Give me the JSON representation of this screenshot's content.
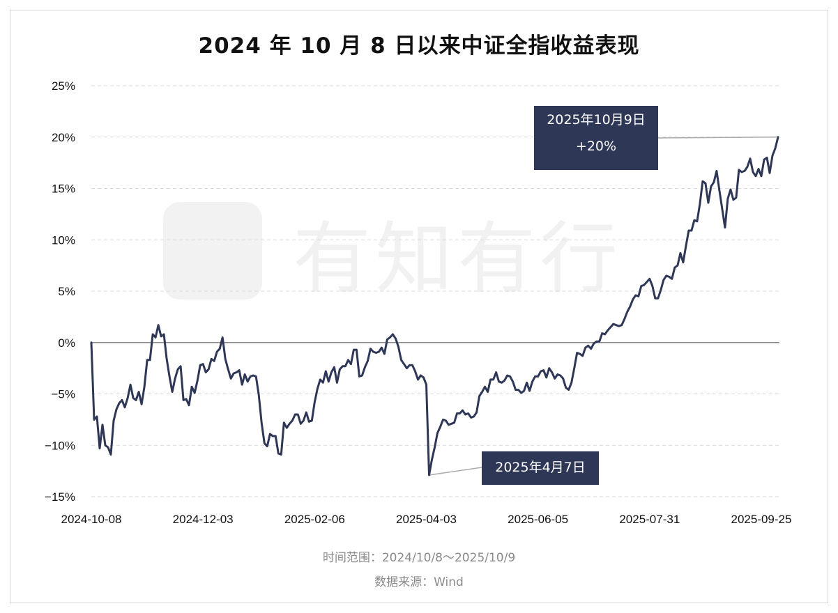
{
  "title": "2024 年 10 月 8 日以来中证全指收益表现",
  "watermark": "有知有行",
  "footer": {
    "time_range": "时间范围：2024/10/8～2025/10/9",
    "source": "数据来源：Wind"
  },
  "annotations": {
    "peak_date": "2025年10月9日",
    "peak_value": "+20%",
    "trough_date": "2025年4月7日"
  },
  "colors": {
    "line": "#2f3757",
    "callout_bg": "#2f3757",
    "grid": "#d9d9d9",
    "zero_line": "#8a8a8a"
  },
  "chart_data": {
    "type": "line",
    "title": "2024 年 10 月 8 日以来中证全指收益表现",
    "xlabel": "",
    "ylabel": "",
    "ylim": [
      -15,
      25
    ],
    "yticks": [
      -15,
      -10,
      -5,
      0,
      5,
      10,
      15,
      20,
      25
    ],
    "ytick_labels": [
      "−15%",
      "−10%",
      "−5%",
      "0%",
      "5%",
      "10%",
      "15%",
      "20%",
      "25%"
    ],
    "xlim": [
      "2024-10-08",
      "2025-10-09"
    ],
    "xtick_labels": [
      "2024-10-08",
      "2024-12-03",
      "2025-02-06",
      "2025-04-03",
      "2025-06-05",
      "2025-07-31",
      "2025-09-25"
    ],
    "grid": true,
    "series": [
      {
        "points": [
          [
            "2024-10-08",
            0.0
          ],
          [
            "2024-10-09",
            -7.5
          ],
          [
            "2024-10-10",
            -7.2
          ],
          [
            "2024-10-11",
            -10.3
          ],
          [
            "2024-10-14",
            -8.0
          ],
          [
            "2024-10-15",
            -10.0
          ],
          [
            "2024-10-16",
            -10.2
          ],
          [
            "2024-10-17",
            -10.9
          ],
          [
            "2024-10-18",
            -7.6
          ],
          [
            "2024-10-21",
            -6.5
          ],
          [
            "2024-10-22",
            -5.9
          ],
          [
            "2024-10-23",
            -5.6
          ],
          [
            "2024-10-24",
            -6.3
          ],
          [
            "2024-10-25",
            -5.4
          ],
          [
            "2024-10-28",
            -4.1
          ],
          [
            "2024-10-29",
            -5.4
          ],
          [
            "2024-10-30",
            -5.6
          ],
          [
            "2024-10-31",
            -4.8
          ],
          [
            "2024-11-01",
            -6.0
          ],
          [
            "2024-11-04",
            -4.3
          ],
          [
            "2024-11-05",
            -1.7
          ],
          [
            "2024-11-06",
            -1.7
          ],
          [
            "2024-11-07",
            0.8
          ],
          [
            "2024-11-08",
            0.5
          ],
          [
            "2024-11-11",
            1.7
          ],
          [
            "2024-11-12",
            0.6
          ],
          [
            "2024-11-13",
            0.8
          ],
          [
            "2024-11-14",
            -1.6
          ],
          [
            "2024-11-15",
            -3.3
          ],
          [
            "2024-11-18",
            -4.8
          ],
          [
            "2024-11-19",
            -3.5
          ],
          [
            "2024-11-20",
            -2.6
          ],
          [
            "2024-11-21",
            -2.3
          ],
          [
            "2024-11-22",
            -5.6
          ],
          [
            "2024-11-25",
            -5.5
          ],
          [
            "2024-11-26",
            -6.1
          ],
          [
            "2024-11-27",
            -4.3
          ],
          [
            "2024-11-28",
            -4.9
          ],
          [
            "2024-11-29",
            -3.7
          ],
          [
            "2024-12-02",
            -2.2
          ],
          [
            "2024-12-03",
            -2.1
          ],
          [
            "2024-12-04",
            -2.9
          ],
          [
            "2024-12-05",
            -2.6
          ],
          [
            "2024-12-06",
            -1.6
          ],
          [
            "2024-12-09",
            -1.8
          ],
          [
            "2024-12-10",
            -0.9
          ],
          [
            "2024-12-11",
            -0.6
          ],
          [
            "2024-12-12",
            0.5
          ],
          [
            "2024-12-13",
            -1.6
          ],
          [
            "2024-12-16",
            -2.6
          ],
          [
            "2024-12-17",
            -3.5
          ],
          [
            "2024-12-18",
            -3.0
          ],
          [
            "2024-12-19",
            -2.9
          ],
          [
            "2024-12-20",
            -2.7
          ],
          [
            "2024-12-23",
            -4.1
          ],
          [
            "2024-12-24",
            -3.1
          ],
          [
            "2024-12-25",
            -3.8
          ],
          [
            "2024-12-26",
            -3.3
          ],
          [
            "2024-12-27",
            -3.2
          ],
          [
            "2024-12-30",
            -3.3
          ],
          [
            "2024-12-31",
            -5.1
          ],
          [
            "2025-01-02",
            -7.8
          ],
          [
            "2025-01-03",
            -9.8
          ],
          [
            "2025-01-06",
            -10.1
          ],
          [
            "2025-01-07",
            -8.9
          ],
          [
            "2025-01-08",
            -9.1
          ],
          [
            "2025-01-09",
            -9.1
          ],
          [
            "2025-01-10",
            -10.8
          ],
          [
            "2025-01-13",
            -10.9
          ],
          [
            "2025-01-14",
            -7.8
          ],
          [
            "2025-01-15",
            -8.3
          ],
          [
            "2025-01-16",
            -7.9
          ],
          [
            "2025-01-17",
            -7.6
          ],
          [
            "2025-01-20",
            -7.0
          ],
          [
            "2025-01-21",
            -7.0
          ],
          [
            "2025-01-22",
            -7.9
          ],
          [
            "2025-01-23",
            -7.6
          ],
          [
            "2025-01-24",
            -6.8
          ],
          [
            "2025-01-27",
            -7.7
          ],
          [
            "2025-02-05",
            -7.6
          ],
          [
            "2025-02-06",
            -5.8
          ],
          [
            "2025-02-07",
            -4.5
          ],
          [
            "2025-02-10",
            -3.6
          ],
          [
            "2025-02-11",
            -3.9
          ],
          [
            "2025-02-12",
            -2.8
          ],
          [
            "2025-02-13",
            -3.8
          ],
          [
            "2025-02-14",
            -2.9
          ],
          [
            "2025-02-17",
            -2.4
          ],
          [
            "2025-02-18",
            -3.9
          ],
          [
            "2025-02-19",
            -2.6
          ],
          [
            "2025-02-20",
            -2.3
          ],
          [
            "2025-02-21",
            -2.3
          ],
          [
            "2025-02-24",
            -1.7
          ],
          [
            "2025-02-25",
            -2.1
          ],
          [
            "2025-02-26",
            -0.7
          ],
          [
            "2025-02-27",
            -0.7
          ],
          [
            "2025-02-28",
            -3.3
          ],
          [
            "2025-03-03",
            -3.2
          ],
          [
            "2025-03-04",
            -2.4
          ],
          [
            "2025-03-05",
            -1.8
          ],
          [
            "2025-03-06",
            -0.6
          ],
          [
            "2025-03-07",
            -0.9
          ],
          [
            "2025-03-10",
            -1.0
          ],
          [
            "2025-03-11",
            -0.9
          ],
          [
            "2025-03-12",
            -0.5
          ],
          [
            "2025-03-13",
            -1.1
          ],
          [
            "2025-03-14",
            0.3
          ],
          [
            "2025-03-17",
            0.5
          ],
          [
            "2025-03-18",
            0.8
          ],
          [
            "2025-03-19",
            0.4
          ],
          [
            "2025-03-20",
            -0.4
          ],
          [
            "2025-03-21",
            -1.7
          ],
          [
            "2025-03-24",
            -2.1
          ],
          [
            "2025-03-25",
            -2.5
          ],
          [
            "2025-03-26",
            -2.2
          ],
          [
            "2025-03-27",
            -2.2
          ],
          [
            "2025-03-28",
            -2.8
          ],
          [
            "2025-03-31",
            -3.6
          ],
          [
            "2025-04-01",
            -3.2
          ],
          [
            "2025-04-02",
            -3.4
          ],
          [
            "2025-04-03",
            -4.1
          ],
          [
            "2025-04-07",
            -12.9
          ],
          [
            "2025-04-08",
            -11.4
          ],
          [
            "2025-04-09",
            -10.2
          ],
          [
            "2025-04-10",
            -8.8
          ],
          [
            "2025-04-11",
            -8.2
          ],
          [
            "2025-04-14",
            -7.5
          ],
          [
            "2025-04-15",
            -7.6
          ],
          [
            "2025-04-16",
            -8.0
          ],
          [
            "2025-04-17",
            -7.9
          ],
          [
            "2025-04-18",
            -7.8
          ],
          [
            "2025-04-21",
            -6.9
          ],
          [
            "2025-04-22",
            -6.9
          ],
          [
            "2025-04-23",
            -6.6
          ],
          [
            "2025-04-24",
            -7.0
          ],
          [
            "2025-04-25",
            -6.9
          ],
          [
            "2025-04-28",
            -7.3
          ],
          [
            "2025-04-29",
            -7.2
          ],
          [
            "2025-04-30",
            -6.8
          ],
          [
            "2025-05-06",
            -5.2
          ],
          [
            "2025-05-07",
            -4.8
          ],
          [
            "2025-05-08",
            -4.3
          ],
          [
            "2025-05-09",
            -4.8
          ],
          [
            "2025-05-12",
            -3.6
          ],
          [
            "2025-05-13",
            -3.6
          ],
          [
            "2025-05-14",
            -2.9
          ],
          [
            "2025-05-15",
            -3.8
          ],
          [
            "2025-05-16",
            -3.9
          ],
          [
            "2025-05-19",
            -3.7
          ],
          [
            "2025-05-20",
            -3.2
          ],
          [
            "2025-05-21",
            -3.3
          ],
          [
            "2025-05-22",
            -3.8
          ],
          [
            "2025-05-23",
            -4.6
          ],
          [
            "2025-05-26",
            -4.6
          ],
          [
            "2025-05-27",
            -4.9
          ],
          [
            "2025-05-28",
            -4.7
          ],
          [
            "2025-05-29",
            -3.9
          ],
          [
            "2025-05-30",
            -4.7
          ],
          [
            "2025-06-03",
            -3.8
          ],
          [
            "2025-06-04",
            -3.3
          ],
          [
            "2025-06-05",
            -3.3
          ],
          [
            "2025-06-06",
            -2.8
          ],
          [
            "2025-06-09",
            -2.7
          ],
          [
            "2025-06-10",
            -3.4
          ],
          [
            "2025-06-11",
            -2.5
          ],
          [
            "2025-06-12",
            -2.9
          ],
          [
            "2025-06-13",
            -3.5
          ],
          [
            "2025-06-16",
            -3.1
          ],
          [
            "2025-06-17",
            -3.2
          ],
          [
            "2025-06-18",
            -3.5
          ],
          [
            "2025-06-19",
            -4.4
          ],
          [
            "2025-06-20",
            -4.6
          ],
          [
            "2025-06-23",
            -3.9
          ],
          [
            "2025-06-24",
            -2.5
          ],
          [
            "2025-06-25",
            -1.0
          ],
          [
            "2025-06-26",
            -1.1
          ],
          [
            "2025-06-27",
            -1.3
          ],
          [
            "2025-06-30",
            -0.5
          ],
          [
            "2025-07-01",
            -0.3
          ],
          [
            "2025-07-02",
            -0.6
          ],
          [
            "2025-07-03",
            -0.1
          ],
          [
            "2025-07-04",
            0.1
          ],
          [
            "2025-07-07",
            0.1
          ],
          [
            "2025-07-08",
            0.9
          ],
          [
            "2025-07-09",
            0.8
          ],
          [
            "2025-07-10",
            1.2
          ],
          [
            "2025-07-11",
            1.5
          ],
          [
            "2025-07-14",
            1.8
          ],
          [
            "2025-07-15",
            1.7
          ],
          [
            "2025-07-16",
            1.6
          ],
          [
            "2025-07-17",
            1.7
          ],
          [
            "2025-07-18",
            2.3
          ],
          [
            "2025-07-21",
            3.0
          ],
          [
            "2025-07-22",
            3.5
          ],
          [
            "2025-07-23",
            4.2
          ],
          [
            "2025-07-24",
            4.6
          ],
          [
            "2025-07-25",
            4.5
          ],
          [
            "2025-07-28",
            5.5
          ],
          [
            "2025-07-29",
            5.6
          ],
          [
            "2025-07-30",
            5.9
          ],
          [
            "2025-07-31",
            6.2
          ],
          [
            "2025-08-01",
            5.5
          ],
          [
            "2025-08-04",
            4.3
          ],
          [
            "2025-08-05",
            4.3
          ],
          [
            "2025-08-06",
            5.1
          ],
          [
            "2025-08-07",
            6.1
          ],
          [
            "2025-08-08",
            6.5
          ],
          [
            "2025-08-11",
            6.4
          ],
          [
            "2025-08-12",
            6.2
          ],
          [
            "2025-08-13",
            7.3
          ],
          [
            "2025-08-14",
            7.5
          ],
          [
            "2025-08-15",
            8.7
          ],
          [
            "2025-08-18",
            7.8
          ],
          [
            "2025-08-19",
            9.4
          ],
          [
            "2025-08-20",
            10.9
          ],
          [
            "2025-08-21",
            10.9
          ],
          [
            "2025-08-22",
            11.9
          ],
          [
            "2025-08-25",
            11.8
          ],
          [
            "2025-08-26",
            13.5
          ],
          [
            "2025-08-27",
            15.7
          ],
          [
            "2025-08-28",
            15.5
          ],
          [
            "2025-08-29",
            13.6
          ],
          [
            "2025-09-01",
            15.2
          ],
          [
            "2025-09-02",
            15.6
          ],
          [
            "2025-09-03",
            16.7
          ],
          [
            "2025-09-04",
            14.8
          ],
          [
            "2025-09-05",
            13.0
          ],
          [
            "2025-09-08",
            11.2
          ],
          [
            "2025-09-09",
            14.0
          ],
          [
            "2025-09-10",
            14.9
          ],
          [
            "2025-09-11",
            13.9
          ],
          [
            "2025-09-12",
            14.1
          ],
          [
            "2025-09-15",
            16.8
          ],
          [
            "2025-09-16",
            16.6
          ],
          [
            "2025-09-17",
            16.7
          ],
          [
            "2025-09-18",
            17.1
          ],
          [
            "2025-09-19",
            17.9
          ],
          [
            "2025-09-22",
            16.6
          ],
          [
            "2025-09-23",
            16.2
          ],
          [
            "2025-09-24",
            16.9
          ],
          [
            "2025-09-25",
            16.2
          ],
          [
            "2025-09-26",
            17.8
          ],
          [
            "2025-09-29",
            18.0
          ],
          [
            "2025-09-30",
            16.5
          ],
          [
            "2025-10-01",
            18.2
          ],
          [
            "2025-10-03",
            18.9
          ],
          [
            "2025-10-09",
            20.0
          ]
        ]
      }
    ]
  }
}
